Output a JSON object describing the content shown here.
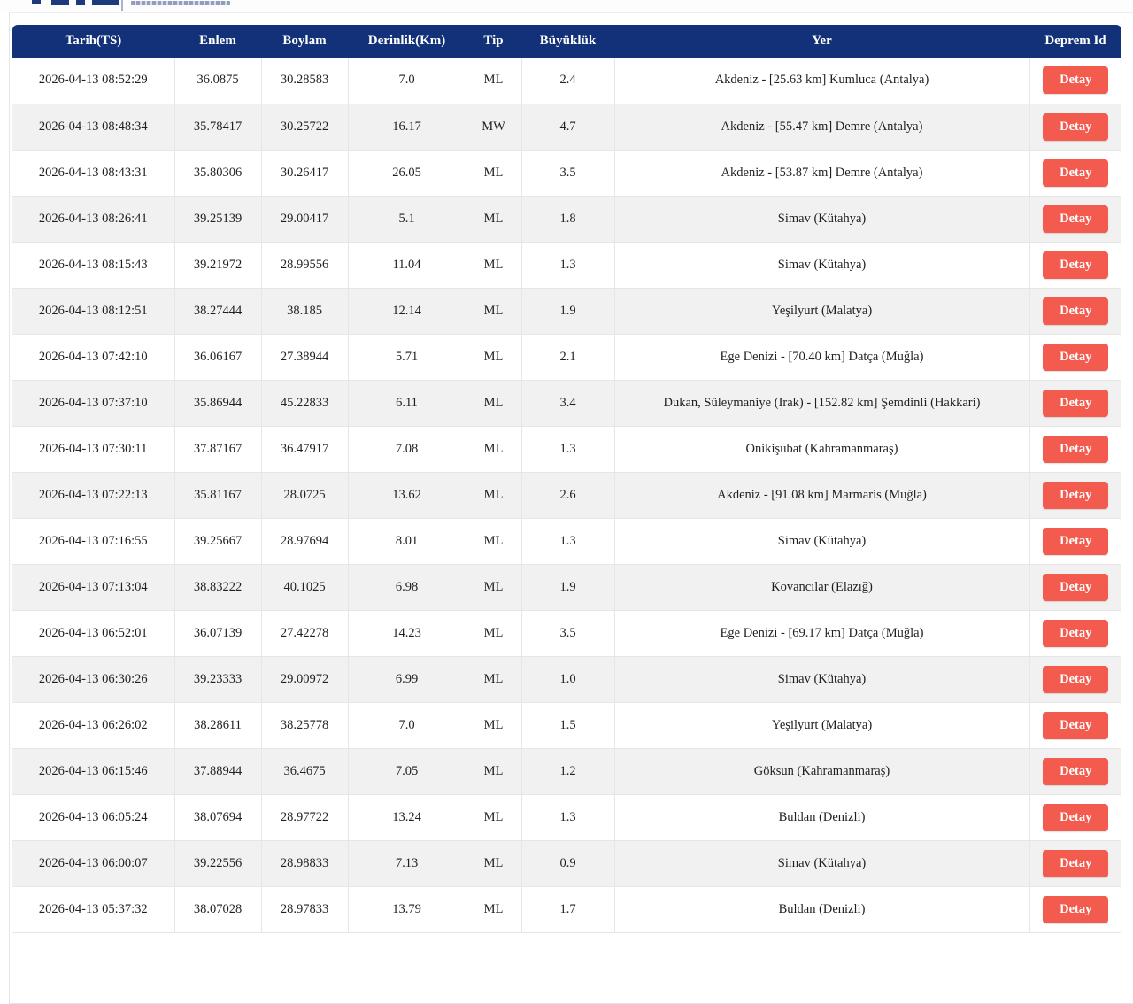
{
  "page": {
    "site_header": {
      "logo": "cropped-site-logo",
      "caption_legibility": "illegible-cropped-text"
    }
  },
  "colors": {
    "table_header_bg": "#123178",
    "detail_button_bg": "#f25b4e",
    "zebra_row_bg": "#f1f1f1",
    "grid_border": "#e6e6e8"
  },
  "table": {
    "columns": [
      "Tarih(TS)",
      "Enlem",
      "Boylam",
      "Derinlik(Km)",
      "Tip",
      "Büyüklük",
      "Yer",
      "Deprem Id"
    ],
    "detail_button_label": "Detay",
    "rows": [
      {
        "tarih": "2026-04-13 08:52:29",
        "enlem": "36.0875",
        "boylam": "30.28583",
        "derinlik": "7.0",
        "tip": "ML",
        "buyukluk": "2.4",
        "yer": "Akdeniz - [25.63 km] Kumluca (Antalya)"
      },
      {
        "tarih": "2026-04-13 08:48:34",
        "enlem": "35.78417",
        "boylam": "30.25722",
        "derinlik": "16.17",
        "tip": "MW",
        "buyukluk": "4.7",
        "yer": "Akdeniz - [55.47 km] Demre (Antalya)"
      },
      {
        "tarih": "2026-04-13 08:43:31",
        "enlem": "35.80306",
        "boylam": "30.26417",
        "derinlik": "26.05",
        "tip": "ML",
        "buyukluk": "3.5",
        "yer": "Akdeniz - [53.87 km] Demre (Antalya)"
      },
      {
        "tarih": "2026-04-13 08:26:41",
        "enlem": "39.25139",
        "boylam": "29.00417",
        "derinlik": "5.1",
        "tip": "ML",
        "buyukluk": "1.8",
        "yer": "Simav (Kütahya)"
      },
      {
        "tarih": "2026-04-13 08:15:43",
        "enlem": "39.21972",
        "boylam": "28.99556",
        "derinlik": "11.04",
        "tip": "ML",
        "buyukluk": "1.3",
        "yer": "Simav (Kütahya)"
      },
      {
        "tarih": "2026-04-13 08:12:51",
        "enlem": "38.27444",
        "boylam": "38.185",
        "derinlik": "12.14",
        "tip": "ML",
        "buyukluk": "1.9",
        "yer": "Yeşilyurt (Malatya)"
      },
      {
        "tarih": "2026-04-13 07:42:10",
        "enlem": "36.06167",
        "boylam": "27.38944",
        "derinlik": "5.71",
        "tip": "ML",
        "buyukluk": "2.1",
        "yer": "Ege Denizi - [70.40 km] Datça (Muğla)"
      },
      {
        "tarih": "2026-04-13 07:37:10",
        "enlem": "35.86944",
        "boylam": "45.22833",
        "derinlik": "6.11",
        "tip": "ML",
        "buyukluk": "3.4",
        "yer": "Dukan, Süleymaniye (Irak) - [152.82 km] Şemdinli (Hakkari)"
      },
      {
        "tarih": "2026-04-13 07:30:11",
        "enlem": "37.87167",
        "boylam": "36.47917",
        "derinlik": "7.08",
        "tip": "ML",
        "buyukluk": "1.3",
        "yer": "Onikişubat (Kahramanmaraş)"
      },
      {
        "tarih": "2026-04-13 07:22:13",
        "enlem": "35.81167",
        "boylam": "28.0725",
        "derinlik": "13.62",
        "tip": "ML",
        "buyukluk": "2.6",
        "yer": "Akdeniz - [91.08 km] Marmaris (Muğla)"
      },
      {
        "tarih": "2026-04-13 07:16:55",
        "enlem": "39.25667",
        "boylam": "28.97694",
        "derinlik": "8.01",
        "tip": "ML",
        "buyukluk": "1.3",
        "yer": "Simav (Kütahya)"
      },
      {
        "tarih": "2026-04-13 07:13:04",
        "enlem": "38.83222",
        "boylam": "40.1025",
        "derinlik": "6.98",
        "tip": "ML",
        "buyukluk": "1.9",
        "yer": "Kovancılar (Elazığ)"
      },
      {
        "tarih": "2026-04-13 06:52:01",
        "enlem": "36.07139",
        "boylam": "27.42278",
        "derinlik": "14.23",
        "tip": "ML",
        "buyukluk": "3.5",
        "yer": "Ege Denizi - [69.17 km] Datça (Muğla)"
      },
      {
        "tarih": "2026-04-13 06:30:26",
        "enlem": "39.23333",
        "boylam": "29.00972",
        "derinlik": "6.99",
        "tip": "ML",
        "buyukluk": "1.0",
        "yer": "Simav (Kütahya)"
      },
      {
        "tarih": "2026-04-13 06:26:02",
        "enlem": "38.28611",
        "boylam": "38.25778",
        "derinlik": "7.0",
        "tip": "ML",
        "buyukluk": "1.5",
        "yer": "Yeşilyurt (Malatya)"
      },
      {
        "tarih": "2026-04-13 06:15:46",
        "enlem": "37.88944",
        "boylam": "36.4675",
        "derinlik": "7.05",
        "tip": "ML",
        "buyukluk": "1.2",
        "yer": "Göksun (Kahramanmaraş)"
      },
      {
        "tarih": "2026-04-13 06:05:24",
        "enlem": "38.07694",
        "boylam": "28.97722",
        "derinlik": "13.24",
        "tip": "ML",
        "buyukluk": "1.3",
        "yer": "Buldan (Denizli)"
      },
      {
        "tarih": "2026-04-13 06:00:07",
        "enlem": "39.22556",
        "boylam": "28.98833",
        "derinlik": "7.13",
        "tip": "ML",
        "buyukluk": "0.9",
        "yer": "Simav (Kütahya)"
      },
      {
        "tarih": "2026-04-13 05:37:32",
        "enlem": "38.07028",
        "boylam": "28.97833",
        "derinlik": "13.79",
        "tip": "ML",
        "buyukluk": "1.7",
        "yer": "Buldan (Denizli)"
      }
    ]
  }
}
